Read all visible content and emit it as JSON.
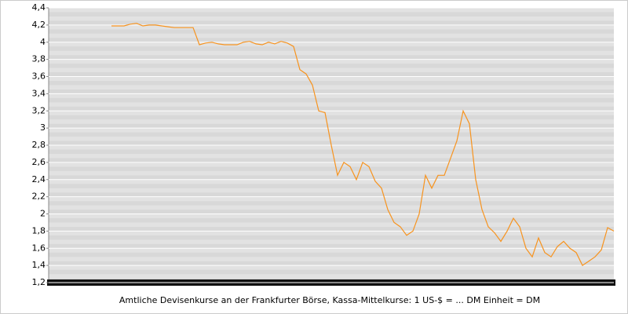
{
  "chart_data": {
    "type": "line",
    "x_label": "Amtliche Devisenkurse an der Frankfurter Börse, Kassa-Mittelkurse: 1 US-$ = ... DM Einheit = DM",
    "series": [
      {
        "color": "#f7931e",
        "values": [
          null,
          null,
          null,
          null,
          null,
          null,
          null,
          null,
          null,
          null,
          4.19,
          4.19,
          4.19,
          4.21,
          4.22,
          4.19,
          4.2,
          4.2,
          4.19,
          4.18,
          4.17,
          4.17,
          4.17,
          4.17,
          3.97,
          3.99,
          4.0,
          3.98,
          3.97,
          3.97,
          3.97,
          4.0,
          4.01,
          3.98,
          3.97,
          4.0,
          3.98,
          4.01,
          3.99,
          3.95,
          3.68,
          3.63,
          3.5,
          3.2,
          3.18,
          2.8,
          2.45,
          2.6,
          2.55,
          2.4,
          2.6,
          2.55,
          2.38,
          2.3,
          2.05,
          1.9,
          1.85,
          1.75,
          1.8,
          2.0,
          2.45,
          2.3,
          2.45,
          2.45,
          2.65,
          2.85,
          3.2,
          3.05,
          2.4,
          2.05,
          1.85,
          1.78,
          1.68,
          1.8,
          1.95,
          1.85,
          1.6,
          1.5,
          1.72,
          1.55,
          1.5,
          1.62,
          1.68,
          1.6,
          1.55,
          1.4,
          1.45,
          1.5,
          1.58,
          1.84,
          1.8
        ]
      }
    ],
    "ylim": [
      1.2,
      4.4
    ],
    "yticks": [
      {
        "value": 1.2,
        "label": "1,2"
      },
      {
        "value": 1.4,
        "label": "1,4"
      },
      {
        "value": 1.6,
        "label": "1,6"
      },
      {
        "value": 1.8,
        "label": "1,8"
      },
      2,
      {
        "value": 2.2,
        "label": "2,2"
      },
      {
        "value": 2.4,
        "label": "2,4"
      },
      {
        "value": 2.6,
        "label": "2,6"
      },
      {
        "value": 2.8,
        "label": "2,8"
      },
      3,
      {
        "value": 3.2,
        "label": "3,2"
      },
      {
        "value": 3.4,
        "label": "3,4"
      },
      {
        "value": 3.6,
        "label": "3,6"
      },
      {
        "value": 3.8,
        "label": "3,8"
      },
      4,
      {
        "value": 4.2,
        "label": "4,2"
      },
      {
        "value": 4.4,
        "label": "4,4"
      }
    ],
    "grid": true
  }
}
